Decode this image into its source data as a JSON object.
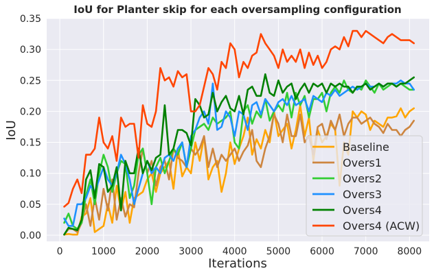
{
  "chart_data": {
    "type": "line",
    "title": "IoU for Planter skip for each oversampling configuration",
    "xlabel": "Iterations",
    "ylabel": "IoU",
    "xlim": [
      -300,
      8450
    ],
    "ylim": [
      -0.01,
      0.35
    ],
    "x_ticks": [
      0,
      1000,
      2000,
      3000,
      4000,
      5000,
      6000,
      7000,
      8000
    ],
    "x_tick_labels": [
      "0",
      "1000",
      "2000",
      "3000",
      "4000",
      "5000",
      "6000",
      "7000",
      "8000"
    ],
    "y_ticks": [
      0.0,
      0.05,
      0.1,
      0.15,
      0.2,
      0.25,
      0.3,
      0.35
    ],
    "y_tick_labels": [
      "0.00",
      "0.05",
      "0.10",
      "0.15",
      "0.20",
      "0.25",
      "0.30",
      "0.35"
    ],
    "grid": true,
    "legend_position": "lower right",
    "x": [
      100,
      200,
      300,
      400,
      500,
      600,
      700,
      800,
      900,
      1000,
      1100,
      1200,
      1300,
      1400,
      1500,
      1600,
      1700,
      1800,
      1900,
      2000,
      2100,
      2200,
      2300,
      2400,
      2500,
      2600,
      2700,
      2800,
      2900,
      3000,
      3100,
      3200,
      3300,
      3400,
      3500,
      3600,
      3700,
      3800,
      3900,
      4000,
      4100,
      4200,
      4300,
      4400,
      4500,
      4600,
      4700,
      4800,
      4900,
      5000,
      5100,
      5200,
      5300,
      5400,
      5500,
      5600,
      5700,
      5800,
      5900,
      6000,
      6100,
      6200,
      6300,
      6400,
      6500,
      6600,
      6700,
      6800,
      6900,
      7000,
      7100,
      7200,
      7300,
      7400,
      7500,
      7600,
      7700,
      7800,
      7900,
      8000,
      8100
    ],
    "series": [
      {
        "name": "Baseline",
        "color": "#ffa500",
        "values": [
          0.001,
          0.002,
          0.001,
          0.001,
          0.03,
          0.035,
          0.06,
          0.005,
          0.01,
          0.015,
          0.05,
          0.02,
          0.08,
          0.04,
          0.07,
          0.02,
          0.06,
          0.065,
          0.07,
          0.09,
          0.1,
          0.07,
          0.1,
          0.11,
          0.12,
          0.075,
          0.14,
          0.095,
          0.11,
          0.1,
          0.15,
          0.12,
          0.16,
          0.09,
          0.11,
          0.12,
          0.07,
          0.1,
          0.15,
          0.115,
          0.14,
          0.16,
          0.19,
          0.13,
          0.155,
          0.14,
          0.17,
          0.15,
          0.2,
          0.16,
          0.17,
          0.18,
          0.14,
          0.17,
          0.21,
          0.16,
          0.19,
          0.12,
          0.17,
          0.15,
          0.16,
          0.18,
          0.17,
          0.08,
          0.15,
          0.13,
          0.2,
          0.19,
          0.2,
          0.195,
          0.17,
          0.185,
          0.18,
          0.175,
          0.19,
          0.19,
          0.192,
          0.205,
          0.19,
          0.2,
          0.205
        ]
      },
      {
        "name": "Overs1",
        "color": "#cd853f",
        "values": [
          0.001,
          0.01,
          0.01,
          0.005,
          0.02,
          0.05,
          0.015,
          0.06,
          0.025,
          0.075,
          0.04,
          0.09,
          0.025,
          0.06,
          0.03,
          0.05,
          0.045,
          0.1,
          0.14,
          0.1,
          0.12,
          0.08,
          0.11,
          0.12,
          0.09,
          0.14,
          0.125,
          0.12,
          0.11,
          0.14,
          0.13,
          0.14,
          0.16,
          0.11,
          0.14,
          0.11,
          0.13,
          0.12,
          0.13,
          0.14,
          0.12,
          0.135,
          0.145,
          0.17,
          0.12,
          0.11,
          0.14,
          0.16,
          0.195,
          0.18,
          0.15,
          0.195,
          0.16,
          0.16,
          0.195,
          0.15,
          0.16,
          0.13,
          0.175,
          0.18,
          0.155,
          0.185,
          0.17,
          0.195,
          0.16,
          0.18,
          0.19,
          0.19,
          0.18,
          0.185,
          0.19,
          0.18,
          0.175,
          0.165,
          0.18,
          0.17,
          0.17,
          0.16,
          0.17,
          0.175,
          0.185
        ]
      },
      {
        "name": "Overs2",
        "color": "#32cd32",
        "values": [
          0.02,
          0.035,
          0.015,
          0.01,
          0.02,
          0.065,
          0.09,
          0.05,
          0.1,
          0.13,
          0.11,
          0.07,
          0.1,
          0.12,
          0.115,
          0.06,
          0.08,
          0.13,
          0.14,
          0.1,
          0.05,
          0.11,
          0.125,
          0.1,
          0.12,
          0.14,
          0.13,
          0.15,
          0.11,
          0.14,
          0.17,
          0.175,
          0.18,
          0.17,
          0.19,
          0.18,
          0.185,
          0.19,
          0.2,
          0.15,
          0.14,
          0.2,
          0.21,
          0.18,
          0.2,
          0.19,
          0.22,
          0.185,
          0.2,
          0.21,
          0.2,
          0.23,
          0.19,
          0.23,
          0.21,
          0.225,
          0.19,
          0.22,
          0.22,
          0.23,
          0.2,
          0.23,
          0.24,
          0.23,
          0.25,
          0.235,
          0.23,
          0.24,
          0.235,
          0.25,
          0.24,
          0.23,
          0.245,
          0.235,
          0.24,
          0.245,
          0.24,
          0.245,
          0.24,
          0.235,
          0.235
        ]
      },
      {
        "name": "Overs3",
        "color": "#1e90ff",
        "values": [
          0.027,
          0.015,
          0.015,
          0.05,
          0.05,
          0.06,
          0.08,
          0.07,
          0.09,
          0.11,
          0.09,
          0.08,
          0.1,
          0.13,
          0.115,
          0.09,
          0.05,
          0.075,
          0.1,
          0.12,
          0.1,
          0.11,
          0.1,
          0.125,
          0.13,
          0.12,
          0.14,
          0.15,
          0.11,
          0.16,
          0.17,
          0.19,
          0.2,
          0.18,
          0.245,
          0.17,
          0.175,
          0.2,
          0.19,
          0.16,
          0.2,
          0.195,
          0.17,
          0.21,
          0.215,
          0.195,
          0.22,
          0.21,
          0.2,
          0.215,
          0.22,
          0.21,
          0.225,
          0.21,
          0.215,
          0.22,
          0.2,
          0.225,
          0.22,
          0.215,
          0.23,
          0.225,
          0.235,
          0.225,
          0.23,
          0.235,
          0.24,
          0.235,
          0.24,
          0.245,
          0.24,
          0.24,
          0.245,
          0.24,
          0.245,
          0.245,
          0.245,
          0.25,
          0.245,
          0.245,
          0.235
        ]
      },
      {
        "name": "Overs4",
        "color": "#008000",
        "values": [
          0.001,
          0.012,
          0.01,
          0.008,
          0.025,
          0.09,
          0.105,
          0.06,
          0.115,
          0.11,
          0.07,
          0.08,
          0.11,
          0.04,
          0.12,
          0.1,
          0.1,
          0.14,
          0.1,
          0.12,
          0.105,
          0.125,
          0.13,
          0.21,
          0.13,
          0.14,
          0.17,
          0.17,
          0.165,
          0.145,
          0.22,
          0.21,
          0.19,
          0.195,
          0.23,
          0.2,
          0.215,
          0.225,
          0.205,
          0.2,
          0.225,
          0.195,
          0.235,
          0.24,
          0.225,
          0.225,
          0.26,
          0.23,
          0.225,
          0.25,
          0.23,
          0.24,
          0.245,
          0.22,
          0.235,
          0.245,
          0.23,
          0.245,
          0.24,
          0.245,
          0.23,
          0.245,
          0.24,
          0.245,
          0.24,
          0.24,
          0.23,
          0.24,
          0.24,
          0.245,
          0.235,
          0.24,
          0.245,
          0.24,
          0.245,
          0.245,
          0.24,
          0.245,
          0.245,
          0.25,
          0.255
        ]
      },
      {
        "name": "Overs4 (ACW)",
        "color": "#ff4500",
        "values": [
          0.046,
          0.052,
          0.075,
          0.09,
          0.068,
          0.13,
          0.13,
          0.14,
          0.19,
          0.15,
          0.14,
          0.16,
          0.12,
          0.19,
          0.175,
          0.18,
          0.18,
          0.125,
          0.21,
          0.18,
          0.175,
          0.2,
          0.27,
          0.25,
          0.255,
          0.24,
          0.265,
          0.255,
          0.26,
          0.2,
          0.2,
          0.21,
          0.24,
          0.27,
          0.26,
          0.235,
          0.28,
          0.27,
          0.31,
          0.3,
          0.255,
          0.28,
          0.27,
          0.29,
          0.295,
          0.325,
          0.31,
          0.3,
          0.29,
          0.27,
          0.3,
          0.28,
          0.29,
          0.28,
          0.3,
          0.27,
          0.295,
          0.275,
          0.29,
          0.27,
          0.28,
          0.3,
          0.305,
          0.3,
          0.32,
          0.305,
          0.33,
          0.33,
          0.32,
          0.33,
          0.325,
          0.32,
          0.315,
          0.31,
          0.32,
          0.325,
          0.32,
          0.315,
          0.315,
          0.315,
          0.31
        ]
      }
    ]
  }
}
